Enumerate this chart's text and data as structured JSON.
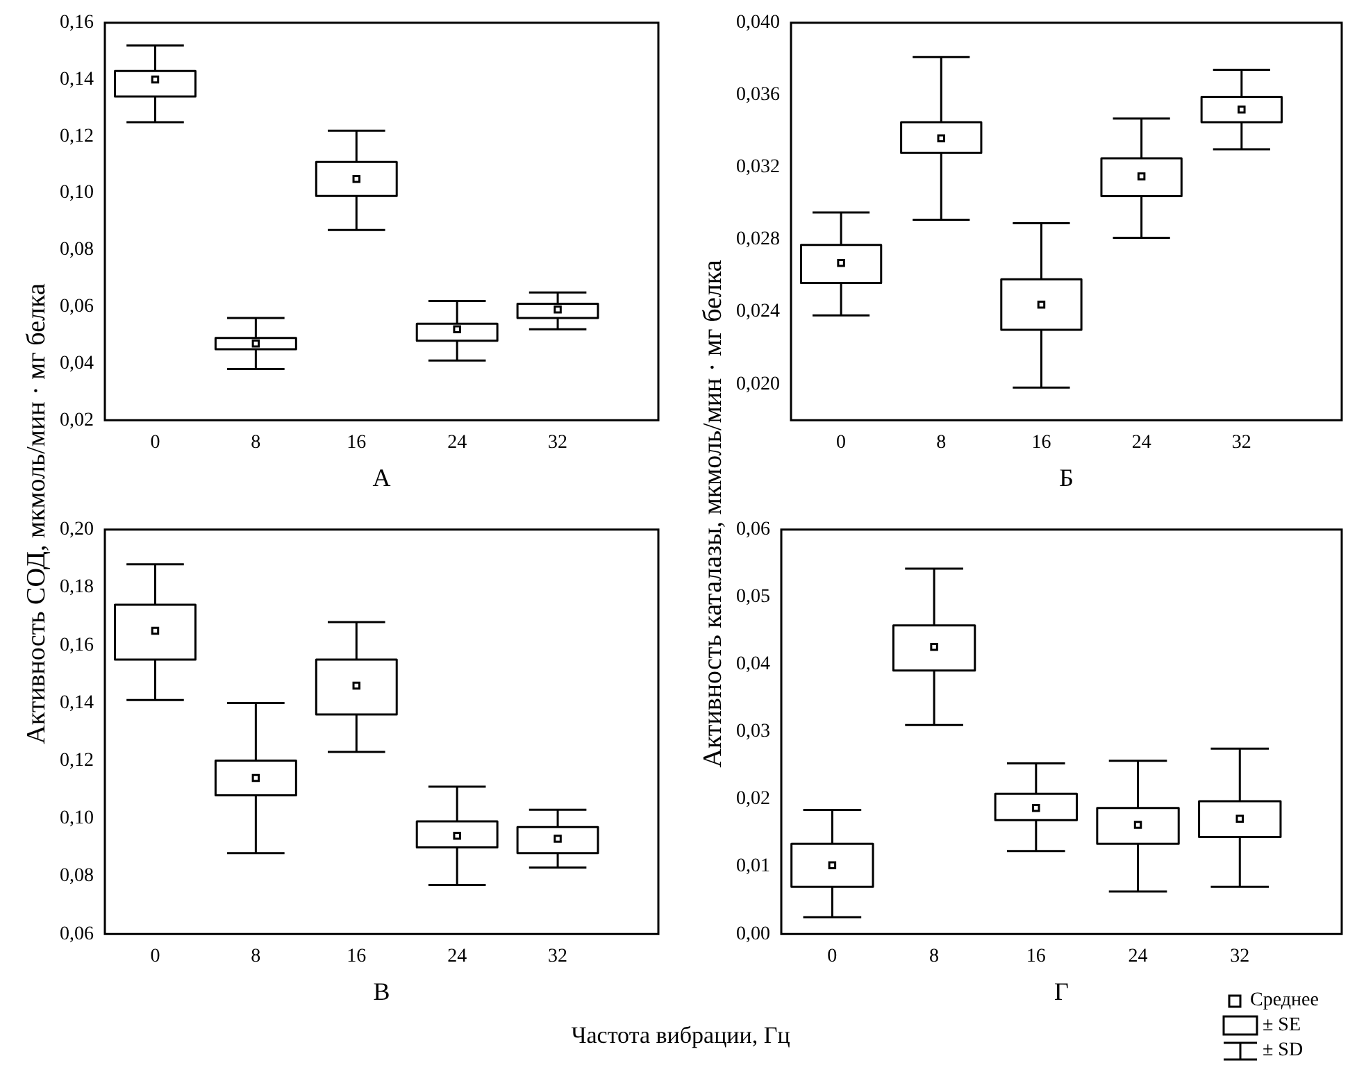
{
  "chart_data": [
    {
      "type": "box",
      "xlabel": "А",
      "ylabel": "Активность СОД, мкмоль/мин · мг белка",
      "categories": [
        "0",
        "8",
        "16",
        "24",
        "32"
      ],
      "boxes": [
        {
          "low": 0.125,
          "q1": 0.134,
          "mean": 0.14,
          "q3": 0.143,
          "high": 0.152
        },
        {
          "low": 0.038,
          "q1": 0.045,
          "mean": 0.047,
          "q3": 0.049,
          "high": 0.056
        },
        {
          "low": 0.087,
          "q1": 0.099,
          "mean": 0.105,
          "q3": 0.111,
          "high": 0.122
        },
        {
          "low": 0.041,
          "q1": 0.048,
          "mean": 0.052,
          "q3": 0.054,
          "high": 0.062
        },
        {
          "low": 0.052,
          "q1": 0.056,
          "mean": 0.059,
          "q3": 0.061,
          "high": 0.065
        }
      ],
      "ylim": [
        0.02,
        0.16
      ],
      "yticks": [
        {
          "value": 0.02,
          "label": "0,02"
        },
        {
          "value": 0.04,
          "label": "0,04"
        },
        {
          "value": 0.06,
          "label": "0,06"
        },
        {
          "value": 0.08,
          "label": "0,08"
        },
        {
          "value": 0.1,
          "label": "0,10"
        },
        {
          "value": 0.12,
          "label": "0,12"
        },
        {
          "value": 0.14,
          "label": "0,14"
        },
        {
          "value": 0.16,
          "label": "0,16"
        }
      ]
    },
    {
      "type": "box",
      "xlabel": "Б",
      "ylabel": "Активность каталазы, мкмоль/мин · мг белка",
      "categories": [
        "0",
        "8",
        "16",
        "24",
        "32"
      ],
      "boxes": [
        {
          "low": 0.0238,
          "q1": 0.0256,
          "mean": 0.0267,
          "q3": 0.0277,
          "high": 0.0295
        },
        {
          "low": 0.0291,
          "q1": 0.0328,
          "mean": 0.0336,
          "q3": 0.0345,
          "high": 0.0381
        },
        {
          "low": 0.0198,
          "q1": 0.023,
          "mean": 0.0244,
          "q3": 0.0258,
          "high": 0.0289
        },
        {
          "low": 0.0281,
          "q1": 0.0304,
          "mean": 0.0315,
          "q3": 0.0325,
          "high": 0.0347
        },
        {
          "low": 0.033,
          "q1": 0.0345,
          "mean": 0.0352,
          "q3": 0.0359,
          "high": 0.0374
        }
      ],
      "ylim": [
        0.018,
        0.04
      ],
      "yticks": [
        {
          "value": 0.02,
          "label": "0,020"
        },
        {
          "value": 0.024,
          "label": "0,024"
        },
        {
          "value": 0.028,
          "label": "0,028"
        },
        {
          "value": 0.032,
          "label": "0,032"
        },
        {
          "value": 0.036,
          "label": "0,036"
        },
        {
          "value": 0.04,
          "label": "0,040"
        }
      ]
    },
    {
      "type": "box",
      "xlabel": "В",
      "categories": [
        "0",
        "8",
        "16",
        "24",
        "32"
      ],
      "boxes": [
        {
          "low": 0.141,
          "q1": 0.155,
          "mean": 0.165,
          "q3": 0.174,
          "high": 0.188
        },
        {
          "low": 0.088,
          "q1": 0.108,
          "mean": 0.114,
          "q3": 0.12,
          "high": 0.14
        },
        {
          "low": 0.123,
          "q1": 0.136,
          "mean": 0.146,
          "q3": 0.155,
          "high": 0.168
        },
        {
          "low": 0.077,
          "q1": 0.09,
          "mean": 0.094,
          "q3": 0.099,
          "high": 0.111
        },
        {
          "low": 0.083,
          "q1": 0.088,
          "mean": 0.093,
          "q3": 0.097,
          "high": 0.103
        }
      ],
      "ylim": [
        0.06,
        0.2
      ],
      "yticks": [
        {
          "value": 0.06,
          "label": "0,06"
        },
        {
          "value": 0.08,
          "label": "0,08"
        },
        {
          "value": 0.1,
          "label": "0,10"
        },
        {
          "value": 0.12,
          "label": "0,12"
        },
        {
          "value": 0.14,
          "label": "0,14"
        },
        {
          "value": 0.16,
          "label": "0,16"
        },
        {
          "value": 0.18,
          "label": "0,18"
        },
        {
          "value": 0.2,
          "label": "0,20"
        }
      ]
    },
    {
      "type": "box",
      "xlabel": "Г",
      "categories": [
        "0",
        "8",
        "16",
        "24",
        "32"
      ],
      "boxes": [
        {
          "low": 0.0025,
          "q1": 0.007,
          "mean": 0.0102,
          "q3": 0.0134,
          "high": 0.0184
        },
        {
          "low": 0.031,
          "q1": 0.0391,
          "mean": 0.0426,
          "q3": 0.0458,
          "high": 0.0542
        },
        {
          "low": 0.0123,
          "q1": 0.0169,
          "mean": 0.0187,
          "q3": 0.0208,
          "high": 0.0253
        },
        {
          "low": 0.0063,
          "q1": 0.0134,
          "mean": 0.0162,
          "q3": 0.0187,
          "high": 0.0257
        },
        {
          "low": 0.007,
          "q1": 0.0144,
          "mean": 0.0171,
          "q3": 0.0197,
          "high": 0.0275
        }
      ],
      "ylim": [
        0,
        0.06
      ],
      "yticks": [
        {
          "value": 0,
          "label": "0,00"
        },
        {
          "value": 0.01,
          "label": "0,01"
        },
        {
          "value": 0.02,
          "label": "0,02"
        },
        {
          "value": 0.03,
          "label": "0,03"
        },
        {
          "value": 0.04,
          "label": "0,04"
        },
        {
          "value": 0.05,
          "label": "0,05"
        },
        {
          "value": 0.06,
          "label": "0,06"
        }
      ],
      "annotations": [
        "Частота вибрации, Гц",
        "Среднее",
        "± SE",
        "± SD"
      ]
    }
  ]
}
